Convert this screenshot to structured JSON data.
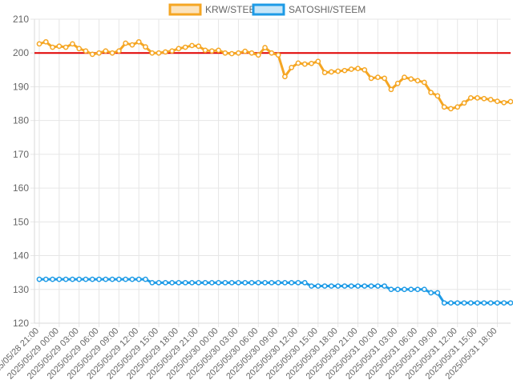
{
  "chart_data": {
    "type": "line",
    "title": "",
    "xlabel": "",
    "ylabel": "",
    "ylim": [
      120,
      210
    ],
    "y_ticks": [
      120,
      130,
      140,
      150,
      160,
      170,
      180,
      190,
      200,
      210
    ],
    "grid": true,
    "legend_position": "top",
    "x_tick_labels": [
      "2025/05/28 21:00",
      "2025/05/29 00:00",
      "2025/05/29 03:00",
      "2025/05/29 06:00",
      "2025/05/29 09:00",
      "2025/05/29 12:00",
      "2025/05/29 15:00",
      "2025/05/29 18:00",
      "2025/05/29 21:00",
      "2025/05/30 00:00",
      "2025/05/30 03:00",
      "2025/05/30 06:00",
      "2025/05/30 09:00",
      "2025/05/30 12:00",
      "2025/05/30 15:00",
      "2025/05/30 18:00",
      "2025/05/30 21:00",
      "2025/05/31 00:00",
      "2025/05/31 03:00",
      "2025/05/31 06:00",
      "2025/05/31 09:00",
      "2025/05/31 12:00",
      "2025/05/31 15:00",
      "2025/05/31 18:00"
    ],
    "reference_line": {
      "value": 200,
      "color": "#e00000"
    },
    "series": [
      {
        "name": "KRW/STEEM",
        "color": "#f5a623",
        "values": [
          202.7,
          203.3,
          201.7,
          202.0,
          201.7,
          202.7,
          201.3,
          200.6,
          199.6,
          200.0,
          200.6,
          200.0,
          200.6,
          202.9,
          202.4,
          203.3,
          201.8,
          200.0,
          200.0,
          200.3,
          200.6,
          201.3,
          201.7,
          202.2,
          202.0,
          200.8,
          200.6,
          200.8,
          200.0,
          199.8,
          200.0,
          200.5,
          200.0,
          199.4,
          201.6,
          200.0,
          199.4,
          193.0,
          195.7,
          197.0,
          196.7,
          196.9,
          197.5,
          194.2,
          194.4,
          194.6,
          194.8,
          195.2,
          195.4,
          195.0,
          192.5,
          192.8,
          192.5,
          189.2,
          191.0,
          192.8,
          192.3,
          191.8,
          191.3,
          188.3,
          187.3,
          184.0,
          183.5,
          184.0,
          185.2,
          186.7,
          186.7,
          186.5,
          186.2,
          185.7,
          185.3,
          185.6
        ]
      },
      {
        "name": "SATOSHI/STEEM",
        "color": "#1e9be6",
        "values": [
          133,
          133,
          133,
          133,
          133,
          133,
          133,
          133,
          133,
          133,
          133,
          133,
          133,
          133,
          133,
          133,
          133,
          132,
          132,
          132,
          132,
          132,
          132,
          132,
          132,
          132,
          132,
          132,
          132,
          132,
          132,
          132,
          132,
          132,
          132,
          132,
          132,
          132,
          132,
          132,
          132,
          131,
          131,
          131,
          131,
          131,
          131,
          131,
          131,
          131,
          131,
          131,
          131,
          130,
          130,
          130,
          130,
          130,
          130,
          129,
          129,
          126,
          126,
          126,
          126,
          126,
          126,
          126,
          126,
          126,
          126,
          126
        ]
      }
    ]
  }
}
